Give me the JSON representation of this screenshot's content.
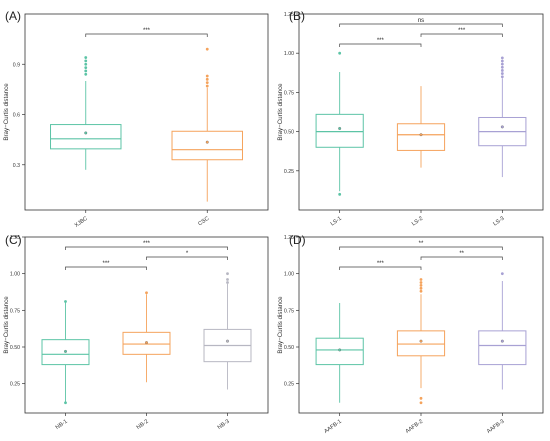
{
  "chart_data": [
    {
      "type": "box",
      "panel_label": "(A)",
      "ylabel": "Bray−Curtis distance",
      "ylim": [
        0.03,
        1.2
      ],
      "yticks": [
        0.3,
        0.6,
        0.9
      ],
      "categories": [
        "XJBC",
        "CSC"
      ],
      "colors": [
        "#5cc4a6",
        "#f5a35c"
      ],
      "boxes": [
        {
          "whisker_low": 0.27,
          "q1": 0.395,
          "median": 0.455,
          "q3": 0.54,
          "whisker_high": 0.8,
          "mean": 0.49,
          "outliers": [
            0.84,
            0.86,
            0.88,
            0.9,
            0.92,
            0.94
          ]
        },
        {
          "whisker_low": 0.08,
          "q1": 0.33,
          "median": 0.39,
          "q3": 0.5,
          "whisker_high": 0.76,
          "mean": 0.435,
          "outliers": [
            0.77,
            0.79,
            0.81,
            0.83,
            0.99
          ]
        }
      ],
      "significance": [
        {
          "from": 0,
          "to": 1,
          "label": "***"
        }
      ]
    },
    {
      "type": "box",
      "panel_label": "(B)",
      "ylabel": "Bray−Curtis distance",
      "ylim": [
        0.0,
        1.25
      ],
      "yticks": [
        0.25,
        0.5,
        0.75,
        1.0,
        1.25
      ],
      "ytick_labels": [
        "0.25",
        "0.50",
        "0.75",
        "1.00",
        "1.25"
      ],
      "categories": [
        "LS-1",
        "LS-2",
        "LS-3"
      ],
      "colors": [
        "#5cc4a6",
        "#f5a35c",
        "#a8a1d4"
      ],
      "boxes": [
        {
          "whisker_low": 0.12,
          "q1": 0.4,
          "median": 0.5,
          "q3": 0.61,
          "whisker_high": 0.88,
          "mean": 0.52,
          "outliers": [
            0.1,
            1.0
          ]
        },
        {
          "whisker_low": 0.27,
          "q1": 0.38,
          "median": 0.48,
          "q3": 0.55,
          "whisker_high": 0.79,
          "mean": 0.48,
          "outliers": []
        },
        {
          "whisker_low": 0.21,
          "q1": 0.41,
          "median": 0.5,
          "q3": 0.59,
          "whisker_high": 0.84,
          "mean": 0.53,
          "outliers": [
            0.85,
            0.87,
            0.89,
            0.91,
            0.93,
            0.95,
            0.97
          ]
        }
      ],
      "significance": [
        {
          "from": 0,
          "to": 1,
          "label": "***",
          "level": 0
        },
        {
          "from": 1,
          "to": 2,
          "label": "***",
          "level": 1
        },
        {
          "from": 0,
          "to": 2,
          "label": "ns",
          "level": 2
        }
      ]
    },
    {
      "type": "box",
      "panel_label": "(C)",
      "ylabel": "Bray−Curtis distance",
      "ylim": [
        0.05,
        1.25
      ],
      "yticks": [
        0.25,
        0.5,
        0.75,
        1.0,
        1.25
      ],
      "ytick_labels": [
        "0.25",
        "0.50",
        "0.75",
        "1.00",
        "1.25"
      ],
      "categories": [
        "NB-1",
        "NB-2",
        "NB-3"
      ],
      "colors": [
        "#5cc4a6",
        "#f5a35c",
        "#b7b7c2"
      ],
      "boxes": [
        {
          "whisker_low": 0.12,
          "q1": 0.38,
          "median": 0.45,
          "q3": 0.55,
          "whisker_high": 0.81,
          "mean": 0.47,
          "outliers": [
            0.12,
            0.81
          ]
        },
        {
          "whisker_low": 0.26,
          "q1": 0.45,
          "median": 0.52,
          "q3": 0.6,
          "whisker_high": 0.86,
          "mean": 0.53,
          "outliers": [
            0.87
          ]
        },
        {
          "whisker_low": 0.21,
          "q1": 0.4,
          "median": 0.51,
          "q3": 0.62,
          "whisker_high": 0.93,
          "mean": 0.54,
          "outliers": [
            0.94,
            0.96,
            1.0
          ]
        }
      ],
      "significance": [
        {
          "from": 0,
          "to": 1,
          "label": "***",
          "level": 0
        },
        {
          "from": 1,
          "to": 2,
          "label": "*",
          "level": 1
        },
        {
          "from": 0,
          "to": 2,
          "label": "***",
          "level": 2
        }
      ]
    },
    {
      "type": "box",
      "panel_label": "(D)",
      "ylabel": "Bray−Curtis distance",
      "ylim": [
        0.05,
        1.25
      ],
      "yticks": [
        0.25,
        0.5,
        0.75,
        1.0,
        1.25
      ],
      "ytick_labels": [
        "0.25",
        "0.50",
        "0.75",
        "1.00",
        "1.25"
      ],
      "categories": [
        "AAFB-1",
        "AAFB-2",
        "AAFB-3"
      ],
      "colors": [
        "#5cc4a6",
        "#f5a35c",
        "#a8a1d4"
      ],
      "boxes": [
        {
          "whisker_low": 0.12,
          "q1": 0.38,
          "median": 0.48,
          "q3": 0.56,
          "whisker_high": 0.8,
          "mean": 0.48,
          "outliers": []
        },
        {
          "whisker_low": 0.22,
          "q1": 0.44,
          "median": 0.52,
          "q3": 0.61,
          "whisker_high": 0.86,
          "mean": 0.54,
          "outliers": [
            0.12,
            0.15,
            0.88,
            0.9,
            0.92,
            0.94,
            0.96
          ]
        },
        {
          "whisker_low": 0.21,
          "q1": 0.38,
          "median": 0.51,
          "q3": 0.61,
          "whisker_high": 0.95,
          "mean": 0.54,
          "outliers": [
            1.0
          ]
        }
      ],
      "significance": [
        {
          "from": 0,
          "to": 1,
          "label": "***",
          "level": 0
        },
        {
          "from": 1,
          "to": 2,
          "label": "**",
          "level": 1
        },
        {
          "from": 0,
          "to": 2,
          "label": "**",
          "level": 2
        }
      ]
    }
  ]
}
